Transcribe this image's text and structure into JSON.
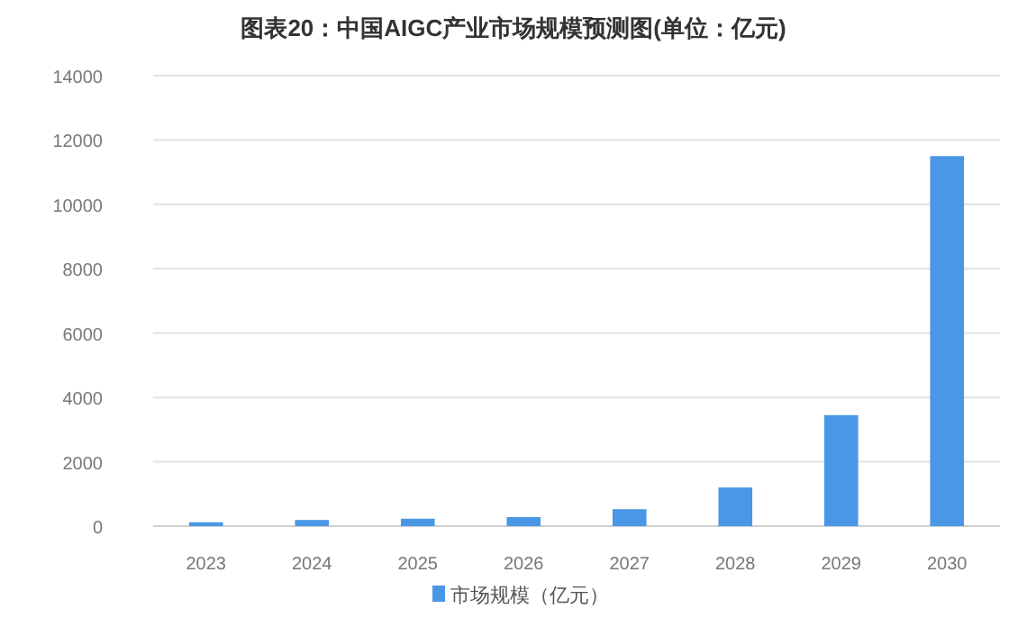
{
  "chart_data": {
    "type": "bar",
    "title": "图表20：中国AIGC产业市场规模预测图(单位：亿元)",
    "categories": [
      "2023",
      "2024",
      "2025",
      "2026",
      "2027",
      "2028",
      "2029",
      "2030"
    ],
    "series": [
      {
        "name": "市场规模（亿元）",
        "color": "#4a97e6",
        "values": [
          120,
          190,
          230,
          280,
          525,
          1200,
          3450,
          11500
        ]
      }
    ],
    "ylim": [
      0,
      14000
    ],
    "yticks": [
      0,
      2000,
      4000,
      6000,
      8000,
      10000,
      12000,
      14000
    ],
    "grid": "y",
    "legend": "bottom"
  }
}
